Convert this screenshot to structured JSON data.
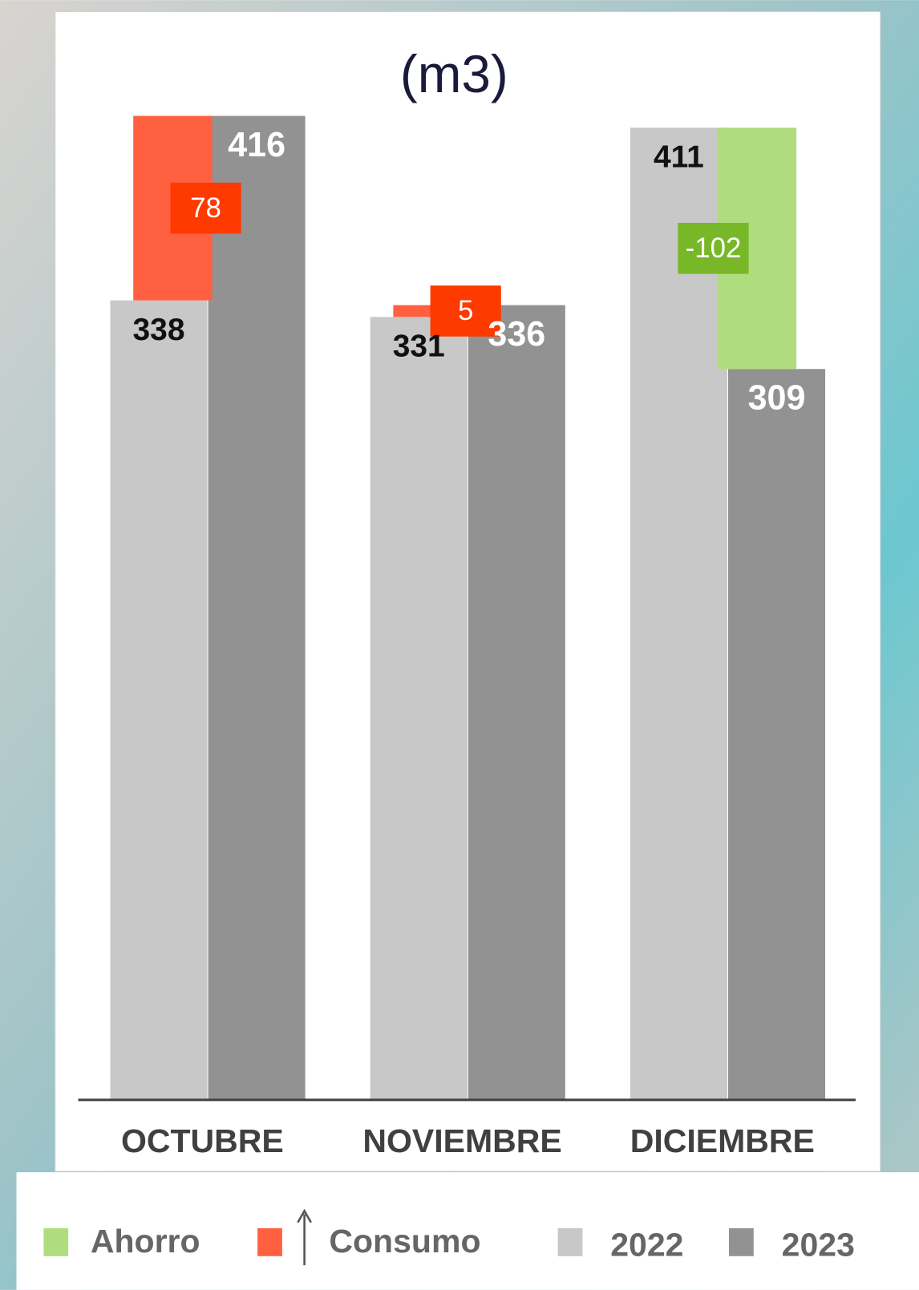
{
  "chart_data": {
    "type": "bar",
    "title": "(m3)",
    "categories": [
      "OCTUBRE",
      "NOVIEMBRE",
      "DICIEMBRE"
    ],
    "series": [
      {
        "name": "2022",
        "color": "#c8c8c8",
        "values": [
          338,
          331,
          411
        ]
      },
      {
        "name": "2023",
        "color": "#929292",
        "values": [
          416,
          336,
          309
        ]
      }
    ],
    "differences": {
      "values": [
        78,
        5,
        -102
      ]
    },
    "difference_legend": [
      {
        "name": "Ahorro",
        "color": "#b0dc80",
        "label_color": "#78b828"
      },
      {
        "name": "Consumo",
        "color": "#ff6040",
        "label_color": "#ff3a00"
      }
    ],
    "ylim": [
      0,
      450
    ]
  }
}
